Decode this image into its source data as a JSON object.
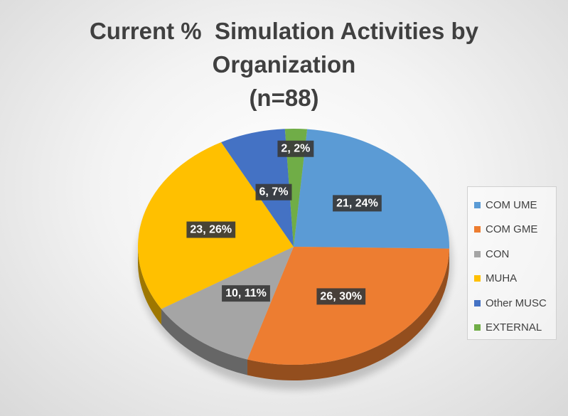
{
  "chart_data": {
    "type": "pie",
    "title_lines": [
      "Current %  Simulation Activities by",
      "Organization",
      "(n=88)"
    ],
    "title": "Current %  Simulation Activities by Organization (n=88)",
    "categories": [
      "COM UME",
      "COM GME",
      "CON",
      "MUHA",
      "Other MUSC",
      "EXTERNAL"
    ],
    "values": [
      21,
      26,
      10,
      23,
      6,
      2
    ],
    "percent_labels": [
      "24%",
      "30%",
      "11%",
      "26%",
      "7%",
      "2%"
    ],
    "data_labels": [
      "21, 24%",
      "26, 30%",
      "10, 11%",
      "23, 26%",
      "6, 7%",
      "2, 2%"
    ],
    "colors": [
      "#5B9BD5",
      "#ED7D31",
      "#A5A5A5",
      "#FFC000",
      "#4472C4",
      "#70AD47"
    ],
    "legend_position": "right",
    "style": "3d"
  }
}
